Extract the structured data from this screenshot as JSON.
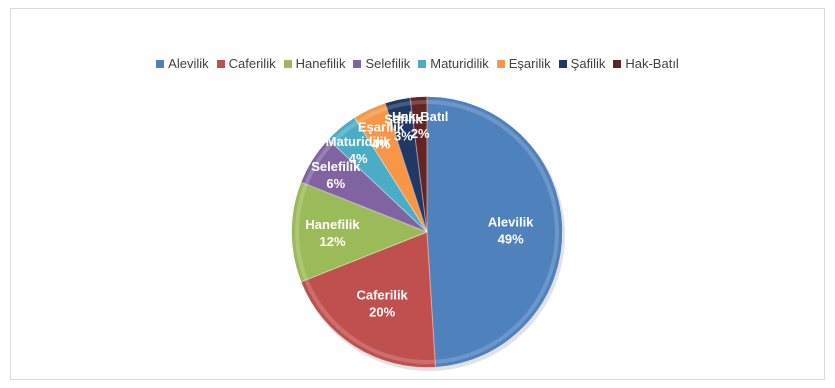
{
  "chart_data": {
    "type": "pie",
    "title": "",
    "legend_position": "top",
    "categories": [
      "Alevilik",
      "Caferilik",
      "Hanefilik",
      "Selefilik",
      "Maturidilik",
      "Eşarilik",
      "Şafilik",
      "Hak-Batıl"
    ],
    "values": [
      49,
      20,
      12,
      6,
      4,
      4,
      3,
      2
    ],
    "value_labels": [
      "49%",
      "20%",
      "12%",
      "6%",
      "4%",
      "4%",
      "3%",
      "2%"
    ],
    "colors": [
      "#4F81BD",
      "#C0504D",
      "#9BBB59",
      "#8064A2",
      "#4BACC6",
      "#F79646",
      "#1F3864",
      "#632523"
    ]
  }
}
